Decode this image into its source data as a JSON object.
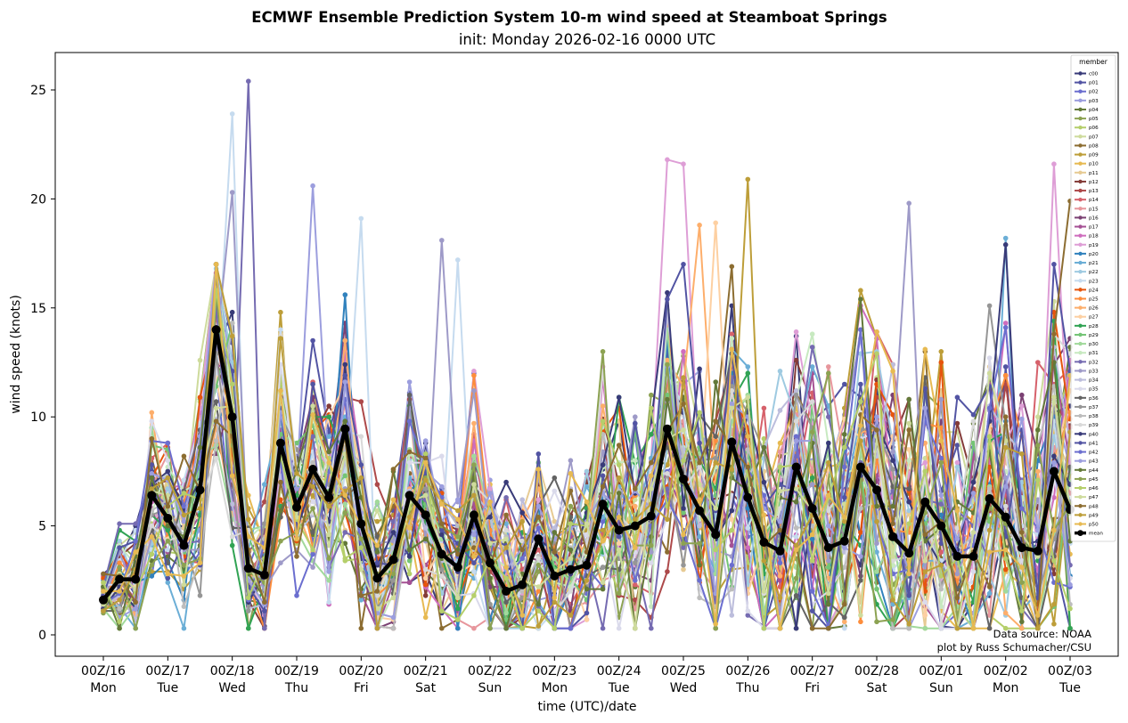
{
  "chart_data": {
    "type": "line",
    "title": "ECMWF Ensemble Prediction System 10-m wind speed at Steamboat Springs",
    "subtitle": "init: Monday 2026-02-16 0000 UTC",
    "xlabel": "time (UTC)/date",
    "ylabel": "wind speed (knots)",
    "x_units": "forecast hour",
    "x_step_hours": 6,
    "xlim_hours": [
      -16,
      373
    ],
    "ylim": [
      -1.0,
      26.7
    ],
    "grid": false,
    "yticks": [
      0,
      5,
      10,
      15,
      20,
      25
    ],
    "xticks": [
      {
        "hour": 0,
        "line1": "00Z/16",
        "line2": "Mon"
      },
      {
        "hour": 24,
        "line1": "00Z/17",
        "line2": "Tue"
      },
      {
        "hour": 48,
        "line1": "00Z/18",
        "line2": "Wed"
      },
      {
        "hour": 72,
        "line1": "00Z/19",
        "line2": "Thu"
      },
      {
        "hour": 96,
        "line1": "00Z/20",
        "line2": "Fri"
      },
      {
        "hour": 120,
        "line1": "00Z/21",
        "line2": "Sat"
      },
      {
        "hour": 144,
        "line1": "00Z/22",
        "line2": "Sun"
      },
      {
        "hour": 168,
        "line1": "00Z/23",
        "line2": "Mon"
      },
      {
        "hour": 192,
        "line1": "00Z/24",
        "line2": "Tue"
      },
      {
        "hour": 216,
        "line1": "00Z/25",
        "line2": "Wed"
      },
      {
        "hour": 240,
        "line1": "00Z/26",
        "line2": "Thu"
      },
      {
        "hour": 264,
        "line1": "00Z/27",
        "line2": "Fri"
      },
      {
        "hour": 288,
        "line1": "00Z/28",
        "line2": "Sat"
      },
      {
        "hour": 312,
        "line1": "00Z/01",
        "line2": "Sun"
      },
      {
        "hour": 336,
        "line1": "00Z/02",
        "line2": "Mon"
      },
      {
        "hour": 360,
        "line1": "00Z/03",
        "line2": "Tue"
      }
    ],
    "legend": {
      "title": "member",
      "location": "upper right"
    },
    "annotation": {
      "line1": "Data source: NOAA",
      "line2": "plot by Russ Schumacher/CSU"
    },
    "mean": {
      "name": "mean",
      "color": "#000000",
      "values": [
        1.6,
        2.55,
        2.55,
        6.4,
        5.35,
        4.1,
        6.65,
        14.0,
        10.0,
        3.05,
        2.75,
        8.8,
        5.85,
        7.6,
        6.3,
        9.45,
        5.1,
        2.6,
        3.45,
        6.4,
        5.5,
        3.7,
        3.1,
        5.5,
        3.3,
        2.0,
        2.3,
        4.4,
        2.7,
        3.0,
        3.2,
        6.0,
        4.8,
        5.0,
        5.45,
        9.45,
        7.15,
        5.7,
        4.6,
        8.85,
        6.3,
        4.25,
        3.85,
        7.7,
        5.8,
        4.0,
        4.3,
        7.7,
        6.65,
        4.5,
        3.75,
        6.1,
        5.0,
        3.6,
        3.6,
        6.25,
        5.4,
        4.0,
        3.85,
        7.5,
        5.75
      ]
    },
    "members": [
      {
        "name": "c00",
        "color": "#393b79"
      },
      {
        "name": "p01",
        "color": "#5254a3"
      },
      {
        "name": "p02",
        "color": "#6b6ecf"
      },
      {
        "name": "p03",
        "color": "#9c9ede"
      },
      {
        "name": "p04",
        "color": "#637939"
      },
      {
        "name": "p05",
        "color": "#8ca252"
      },
      {
        "name": "p06",
        "color": "#b5cf6b"
      },
      {
        "name": "p07",
        "color": "#cedb9c"
      },
      {
        "name": "p08",
        "color": "#8c6d31"
      },
      {
        "name": "p09",
        "color": "#bd9e39"
      },
      {
        "name": "p10",
        "color": "#e7ba52"
      },
      {
        "name": "p11",
        "color": "#e7cb94"
      },
      {
        "name": "p12",
        "color": "#843c39"
      },
      {
        "name": "p13",
        "color": "#ad494a"
      },
      {
        "name": "p14",
        "color": "#d6616b"
      },
      {
        "name": "p15",
        "color": "#e7969c"
      },
      {
        "name": "p16",
        "color": "#7b4173"
      },
      {
        "name": "p17",
        "color": "#a55194"
      },
      {
        "name": "p18",
        "color": "#ce6dbd"
      },
      {
        "name": "p19",
        "color": "#de9ed6"
      },
      {
        "name": "p20",
        "color": "#3182bd"
      },
      {
        "name": "p21",
        "color": "#6baed6"
      },
      {
        "name": "p22",
        "color": "#9ecae1"
      },
      {
        "name": "p23",
        "color": "#c6dbef"
      },
      {
        "name": "p24",
        "color": "#e6550d"
      },
      {
        "name": "p25",
        "color": "#fd8d3c"
      },
      {
        "name": "p26",
        "color": "#fdae6b"
      },
      {
        "name": "p27",
        "color": "#fdd0a2"
      },
      {
        "name": "p28",
        "color": "#31a354"
      },
      {
        "name": "p29",
        "color": "#74c476"
      },
      {
        "name": "p30",
        "color": "#a1d99b"
      },
      {
        "name": "p31",
        "color": "#c7e9c0"
      },
      {
        "name": "p32",
        "color": "#756bb1"
      },
      {
        "name": "p33",
        "color": "#9e9ac8"
      },
      {
        "name": "p34",
        "color": "#bcbddc"
      },
      {
        "name": "p35",
        "color": "#dadaeb"
      },
      {
        "name": "p36",
        "color": "#636363"
      },
      {
        "name": "p37",
        "color": "#969696"
      },
      {
        "name": "p38",
        "color": "#bdbdbd"
      },
      {
        "name": "p39",
        "color": "#d9d9d9"
      },
      {
        "name": "p40",
        "color": "#393b79"
      },
      {
        "name": "p41",
        "color": "#5254a3"
      },
      {
        "name": "p42",
        "color": "#6b6ecf"
      },
      {
        "name": "p43",
        "color": "#9c9ede"
      },
      {
        "name": "p44",
        "color": "#637939"
      },
      {
        "name": "p45",
        "color": "#8ca252"
      },
      {
        "name": "p46",
        "color": "#b5cf6b"
      },
      {
        "name": "p47",
        "color": "#cedb9c"
      },
      {
        "name": "p48",
        "color": "#8c6d31"
      },
      {
        "name": "p49",
        "color": "#bd9e39"
      },
      {
        "name": "p50",
        "color": "#e7ba52"
      }
    ],
    "member_peaks": [
      {
        "member": "p32",
        "hour": 54,
        "value": 25.4
      },
      {
        "member": "p23",
        "hour": 48,
        "value": 23.9
      },
      {
        "member": "p33",
        "hour": 48,
        "value": 20.3
      },
      {
        "member": "p03",
        "hour": 78,
        "value": 20.6
      },
      {
        "member": "p23",
        "hour": 96,
        "value": 19.1
      },
      {
        "member": "p33",
        "hour": 126,
        "value": 18.1
      },
      {
        "member": "p23",
        "hour": 132,
        "value": 17.2
      },
      {
        "member": "p19",
        "hour": 210,
        "value": 21.8
      },
      {
        "member": "p19",
        "hour": 216,
        "value": 21.6
      },
      {
        "member": "p49",
        "hour": 240,
        "value": 20.9
      },
      {
        "member": "p26",
        "hour": 222,
        "value": 18.8
      },
      {
        "member": "p27",
        "hour": 228,
        "value": 18.9
      },
      {
        "member": "p33",
        "hour": 300,
        "value": 19.8
      },
      {
        "member": "p40",
        "hour": 336,
        "value": 17.9
      },
      {
        "member": "p21",
        "hour": 336,
        "value": 18.2
      },
      {
        "member": "p19",
        "hour": 354,
        "value": 21.6
      },
      {
        "member": "p48",
        "hour": 360,
        "value": 19.9
      }
    ]
  }
}
